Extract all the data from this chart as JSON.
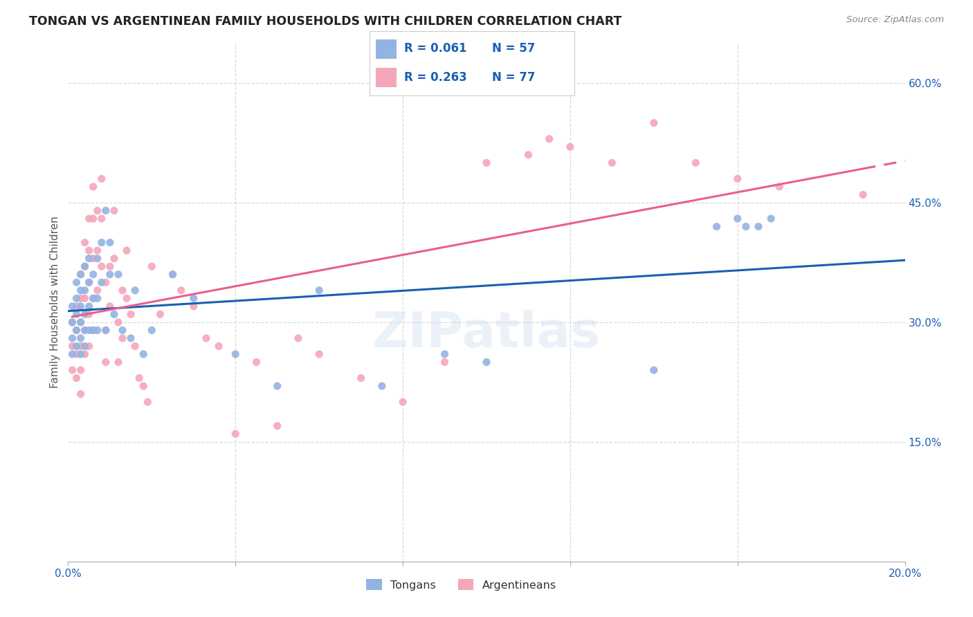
{
  "title": "TONGAN VS ARGENTINEAN FAMILY HOUSEHOLDS WITH CHILDREN CORRELATION CHART",
  "source": "Source: ZipAtlas.com",
  "ylabel": "Family Households with Children",
  "xmin": 0.0,
  "xmax": 0.2,
  "ymin": 0.0,
  "ymax": 0.65,
  "x_tick_positions": [
    0.0,
    0.04,
    0.08,
    0.12,
    0.16,
    0.2
  ],
  "x_tick_labels": [
    "0.0%",
    "",
    "",
    "",
    "",
    "20.0%"
  ],
  "y_tick_positions": [
    0.15,
    0.3,
    0.45,
    0.6
  ],
  "y_tick_labels": [
    "15.0%",
    "30.0%",
    "45.0%",
    "60.0%"
  ],
  "tongan_R": 0.061,
  "tongan_N": 57,
  "argentinean_R": 0.263,
  "argentinean_N": 77,
  "tongan_color": "#92b4e3",
  "argentinean_color": "#f4a7b9",
  "tongan_line_color": "#1a5fb4",
  "argentinean_line_color": "#e8608a",
  "background_color": "#ffffff",
  "grid_color": "#d8d8d8",
  "tongan_x": [
    0.001,
    0.001,
    0.001,
    0.001,
    0.002,
    0.002,
    0.002,
    0.002,
    0.002,
    0.003,
    0.003,
    0.003,
    0.003,
    0.003,
    0.003,
    0.004,
    0.004,
    0.004,
    0.004,
    0.004,
    0.005,
    0.005,
    0.005,
    0.005,
    0.006,
    0.006,
    0.006,
    0.007,
    0.007,
    0.007,
    0.008,
    0.008,
    0.009,
    0.009,
    0.01,
    0.01,
    0.011,
    0.012,
    0.013,
    0.015,
    0.016,
    0.018,
    0.02,
    0.025,
    0.03,
    0.04,
    0.05,
    0.06,
    0.075,
    0.09,
    0.1,
    0.14,
    0.155,
    0.16,
    0.162,
    0.165,
    0.168
  ],
  "tongan_y": [
    0.32,
    0.3,
    0.28,
    0.26,
    0.35,
    0.33,
    0.31,
    0.29,
    0.27,
    0.36,
    0.34,
    0.32,
    0.3,
    0.28,
    0.26,
    0.37,
    0.34,
    0.31,
    0.29,
    0.27,
    0.38,
    0.35,
    0.32,
    0.29,
    0.36,
    0.33,
    0.29,
    0.38,
    0.33,
    0.29,
    0.4,
    0.35,
    0.44,
    0.29,
    0.4,
    0.36,
    0.31,
    0.36,
    0.29,
    0.28,
    0.34,
    0.26,
    0.29,
    0.36,
    0.33,
    0.26,
    0.22,
    0.34,
    0.22,
    0.26,
    0.25,
    0.24,
    0.42,
    0.43,
    0.42,
    0.42,
    0.43
  ],
  "argentinean_x": [
    0.001,
    0.001,
    0.001,
    0.002,
    0.002,
    0.002,
    0.002,
    0.003,
    0.003,
    0.003,
    0.003,
    0.003,
    0.003,
    0.004,
    0.004,
    0.004,
    0.004,
    0.004,
    0.005,
    0.005,
    0.005,
    0.005,
    0.005,
    0.006,
    0.006,
    0.006,
    0.006,
    0.006,
    0.007,
    0.007,
    0.007,
    0.008,
    0.008,
    0.008,
    0.009,
    0.009,
    0.009,
    0.01,
    0.01,
    0.011,
    0.011,
    0.012,
    0.012,
    0.013,
    0.013,
    0.014,
    0.014,
    0.015,
    0.016,
    0.017,
    0.018,
    0.019,
    0.02,
    0.022,
    0.025,
    0.027,
    0.03,
    0.033,
    0.036,
    0.04,
    0.045,
    0.05,
    0.055,
    0.06,
    0.07,
    0.08,
    0.09,
    0.1,
    0.11,
    0.115,
    0.12,
    0.13,
    0.14,
    0.15,
    0.16,
    0.17,
    0.19
  ],
  "argentinean_y": [
    0.3,
    0.27,
    0.24,
    0.32,
    0.29,
    0.26,
    0.23,
    0.36,
    0.33,
    0.3,
    0.27,
    0.24,
    0.21,
    0.4,
    0.37,
    0.33,
    0.29,
    0.26,
    0.43,
    0.39,
    0.35,
    0.31,
    0.27,
    0.47,
    0.43,
    0.38,
    0.33,
    0.29,
    0.44,
    0.39,
    0.34,
    0.48,
    0.43,
    0.37,
    0.35,
    0.29,
    0.25,
    0.37,
    0.32,
    0.44,
    0.38,
    0.3,
    0.25,
    0.34,
    0.28,
    0.39,
    0.33,
    0.31,
    0.27,
    0.23,
    0.22,
    0.2,
    0.37,
    0.31,
    0.36,
    0.34,
    0.32,
    0.28,
    0.27,
    0.16,
    0.25,
    0.17,
    0.28,
    0.26,
    0.23,
    0.2,
    0.25,
    0.5,
    0.51,
    0.53,
    0.52,
    0.5,
    0.55,
    0.5,
    0.48,
    0.47,
    0.46
  ]
}
